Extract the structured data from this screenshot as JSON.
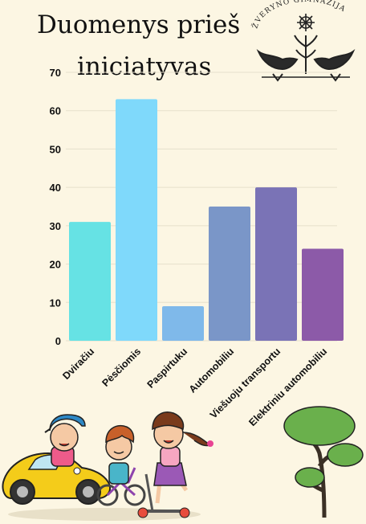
{
  "header": {
    "title_line1": "Duomenys prieš",
    "title_line2": "iniciatyvas",
    "logo_text": "ŽVERYNO GIMNAZIJA"
  },
  "chart_data": {
    "type": "bar",
    "categories": [
      "Dviračiu",
      "Pėsčiomis",
      "Paspirtuku",
      "Automobiliu",
      "Viešuoju transportu",
      "Elektriniu automobiliu"
    ],
    "values": [
      31,
      63,
      9,
      35,
      40,
      24
    ],
    "ylim": [
      0,
      70
    ],
    "yticks": [
      0,
      10,
      20,
      30,
      40,
      50,
      60,
      70
    ],
    "colors": [
      "#66e2e4",
      "#7fd9fb",
      "#7fb9ea",
      "#7a96c8",
      "#7a73b6",
      "#8c5aa8"
    ],
    "grid": true
  },
  "decor": {
    "illustration": "children-riding-car-bike-scooter",
    "tree": "tree-icon"
  }
}
